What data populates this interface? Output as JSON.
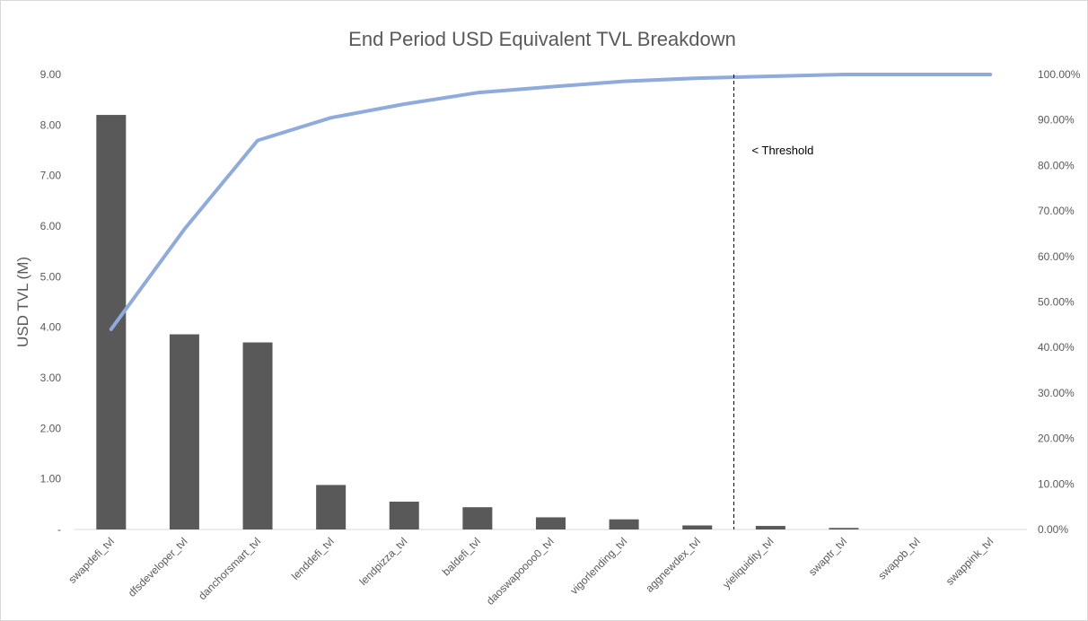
{
  "chart_data": {
    "type": "bar",
    "title": "End Period USD Equivalent TVL Breakdown",
    "ylabel": "USD  TVL (M)",
    "xlabel": "",
    "categories": [
      "swapdefi_tvl",
      "dfsdeveloper_tvl",
      "danchorsmart_tvl",
      "lenddefi_tvl",
      "lendpizza_tvl",
      "baldefi_tvl",
      "daoswapoooo0_tvl",
      "vigorlending_tvl",
      "aggnewdex_tvl",
      "yieliquidity_tvl",
      "swaptr_tvl",
      "swapob_tvl",
      "swappink_tvl"
    ],
    "series": [
      {
        "type": "bar",
        "values": [
          8.2,
          3.86,
          3.7,
          0.88,
          0.55,
          0.44,
          0.24,
          0.2,
          0.08,
          0.07,
          0.03,
          0.0,
          0.0
        ],
        "color": "#595959"
      },
      {
        "type": "line",
        "axis": "right",
        "values": [
          44.0,
          66.0,
          85.5,
          90.5,
          93.5,
          96.0,
          97.3,
          98.5,
          99.2,
          99.6,
          100.0,
          100.0,
          100.0
        ],
        "color": "#8faadc"
      }
    ],
    "ylim": [
      0,
      9
    ],
    "y_ticks": [
      "-",
      "1.00",
      "2.00",
      "3.00",
      "4.00",
      "5.00",
      "6.00",
      "7.00",
      "8.00",
      "9.00"
    ],
    "y2lim": [
      0,
      100
    ],
    "y2_ticks": [
      "0.00%",
      "10.00%",
      "20.00%",
      "30.00%",
      "40.00%",
      "50.00%",
      "60.00%",
      "70.00%",
      "80.00%",
      "90.00%",
      "100.00%"
    ],
    "grid": false,
    "legend": "none",
    "annotations": [
      {
        "text": "< Threshold",
        "style": "dashed-vertical-line",
        "after_category": "aggnewdex_tvl"
      }
    ]
  }
}
